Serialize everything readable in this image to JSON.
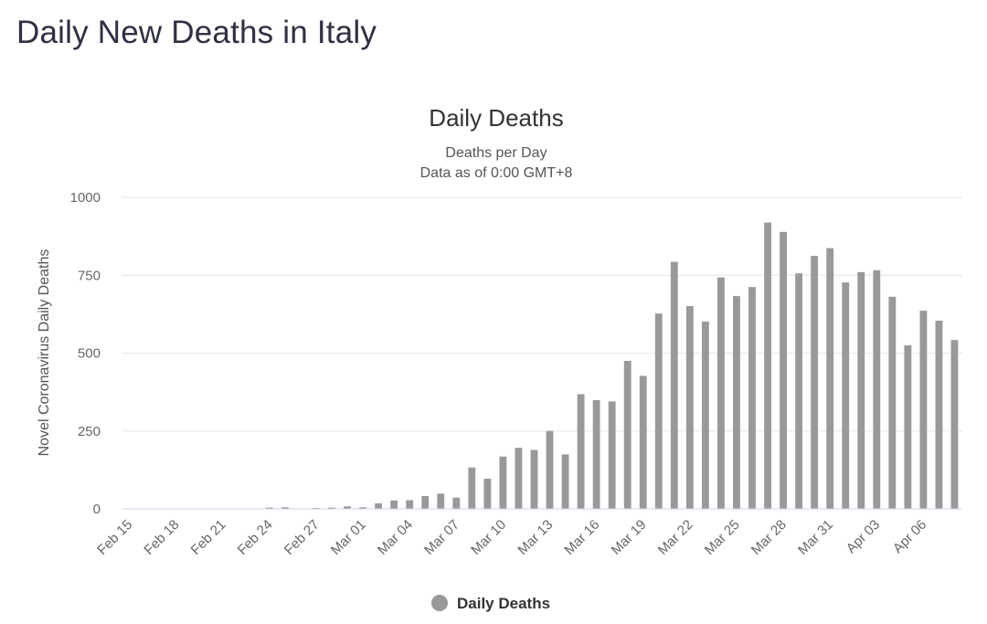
{
  "page": {
    "title": "Daily New Deaths in Italy"
  },
  "chart_data": {
    "type": "bar",
    "title": "Daily Deaths",
    "subtitle": [
      "Deaths per Day",
      "Data as of 0:00 GMT+8"
    ],
    "ylabel": "Novel Coronavirus Daily Deaths",
    "xlabel": "",
    "ylim": [
      0,
      1000
    ],
    "yticks": [
      0,
      250,
      500,
      750,
      1000
    ],
    "grid": true,
    "legend_position": "bottom-center",
    "bar_color": "#999999",
    "xtick_labels": [
      "Feb 15",
      "Feb 18",
      "Feb 21",
      "Feb 24",
      "Feb 27",
      "Mar 01",
      "Mar 04",
      "Mar 07",
      "Mar 10",
      "Mar 13",
      "Mar 16",
      "Mar 19",
      "Mar 22",
      "Mar 25",
      "Mar 28",
      "Mar 31",
      "Apr 03",
      "Apr 06"
    ],
    "categories": [
      "Feb 15",
      "Feb 16",
      "Feb 17",
      "Feb 18",
      "Feb 19",
      "Feb 20",
      "Feb 21",
      "Feb 22",
      "Feb 23",
      "Feb 24",
      "Feb 25",
      "Feb 26",
      "Feb 27",
      "Feb 28",
      "Feb 29",
      "Mar 01",
      "Mar 02",
      "Mar 03",
      "Mar 04",
      "Mar 05",
      "Mar 06",
      "Mar 07",
      "Mar 08",
      "Mar 09",
      "Mar 10",
      "Mar 11",
      "Mar 12",
      "Mar 13",
      "Mar 14",
      "Mar 15",
      "Mar 16",
      "Mar 17",
      "Mar 18",
      "Mar 19",
      "Mar 20",
      "Mar 21",
      "Mar 22",
      "Mar 23",
      "Mar 24",
      "Mar 25",
      "Mar 26",
      "Mar 27",
      "Mar 28",
      "Mar 29",
      "Mar 30",
      "Mar 31",
      "Apr 01",
      "Apr 02",
      "Apr 03",
      "Apr 04",
      "Apr 05",
      "Apr 06",
      "Apr 07",
      "Apr 08"
    ],
    "series": [
      {
        "name": "Daily Deaths",
        "values": [
          0,
          0,
          0,
          0,
          0,
          0,
          1,
          1,
          0,
          4,
          5,
          1,
          3,
          4,
          8,
          5,
          18,
          27,
          28,
          41,
          49,
          36,
          133,
          97,
          168,
          196,
          189,
          250,
          175,
          368,
          349,
          345,
          475,
          427,
          627,
          793,
          651,
          601,
          743,
          683,
          712,
          919,
          889,
          756,
          812,
          837,
          727,
          760,
          766,
          681,
          525,
          636,
          604,
          542
        ]
      }
    ]
  }
}
